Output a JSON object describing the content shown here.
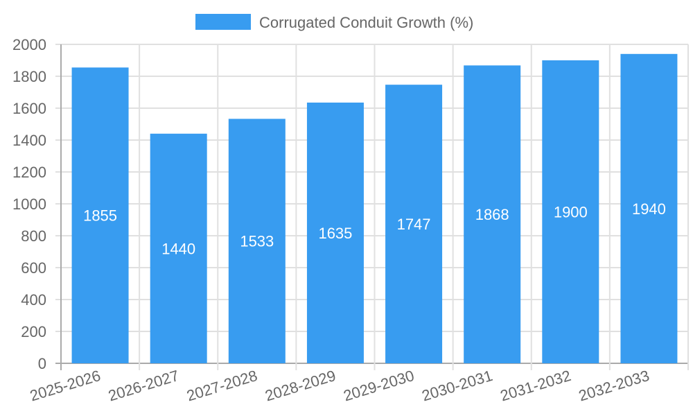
{
  "chart_data": {
    "type": "bar",
    "title": "",
    "legend": [
      {
        "label": "Corrugated Conduit Growth (%)",
        "color": "#389cf0"
      }
    ],
    "legend_position": "top",
    "categories": [
      "2025-2026",
      "2026-2027",
      "2027-2028",
      "2028-2029",
      "2029-2030",
      "2030-2031",
      "2031-2032",
      "2032-2033"
    ],
    "series": [
      {
        "name": "Corrugated Conduit Growth (%)",
        "values": [
          1855,
          1440,
          1533,
          1635,
          1747,
          1868,
          1900,
          1940
        ],
        "color": "#389cf0"
      }
    ],
    "xlabel": "",
    "ylabel": "",
    "ylim": [
      0,
      2000
    ],
    "yticks": [
      0,
      200,
      400,
      600,
      800,
      1000,
      1200,
      1400,
      1600,
      1800,
      2000
    ],
    "grid": true,
    "data_labels": true
  }
}
